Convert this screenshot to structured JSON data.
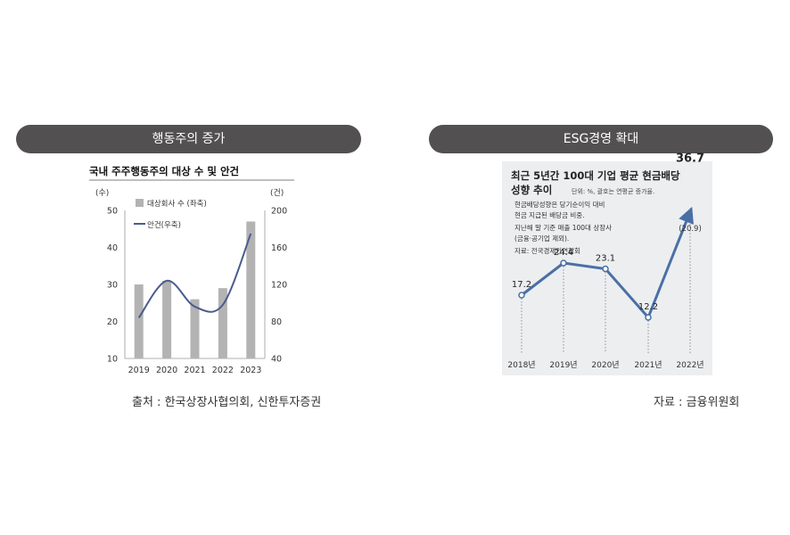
{
  "left_panel": {
    "header": "행동주의 증가",
    "source": "출처 : 한국상장사협의회, 신한투자증권",
    "chart_data": {
      "type": "bar+line",
      "title": "국내 주주행동주의 대상 수 및 안건",
      "left_unit": "(수)",
      "right_unit": "(건)",
      "categories": [
        "2019",
        "2020",
        "2021",
        "2022",
        "2023"
      ],
      "left_ylim": [
        10,
        50
      ],
      "left_ticks": [
        10,
        20,
        30,
        40,
        50
      ],
      "right_ylim": [
        40,
        200
      ],
      "right_ticks": [
        40,
        80,
        120,
        160,
        200
      ],
      "series": [
        {
          "name": "대상회사 수 (좌축)",
          "kind": "bar",
          "axis": "left",
          "color": "#b3b3b3",
          "values": [
            30,
            31,
            26,
            29,
            47
          ]
        },
        {
          "name": "안건(우축)",
          "kind": "line",
          "axis": "right",
          "color": "#4a5b8c",
          "values": [
            84,
            124,
            96,
            98,
            175
          ]
        }
      ]
    }
  },
  "right_panel": {
    "header": "ESG경영 확대",
    "source": "자료 : 금융위원회",
    "chart_data": {
      "type": "line",
      "title_line1": "최근 5년간 100대 기업 평균 현금배당",
      "title_line2": "성향 추이",
      "unit_note": "단위: %, 괄호는 연평균 증가율.",
      "notes": [
        "현금배당성향은 당기순이익 대비",
        "현금 지급된 배당금 비중.",
        "지난해 말 기준 매출 100대 상장사",
        "(금융·공기업 제외)."
      ],
      "credit": "자료: 전국경제인연합회",
      "categories": [
        "2018년",
        "2019년",
        "2020년",
        "2021년",
        "2022년"
      ],
      "values": [
        17.2,
        24.4,
        23.1,
        12.2,
        36.7
      ],
      "labels": [
        "17.2",
        "24.4",
        "23.1",
        "12.2",
        "36.7"
      ],
      "extra_label": "(20.9)",
      "color": "#4a6fa5",
      "background": "#eceef0"
    }
  }
}
